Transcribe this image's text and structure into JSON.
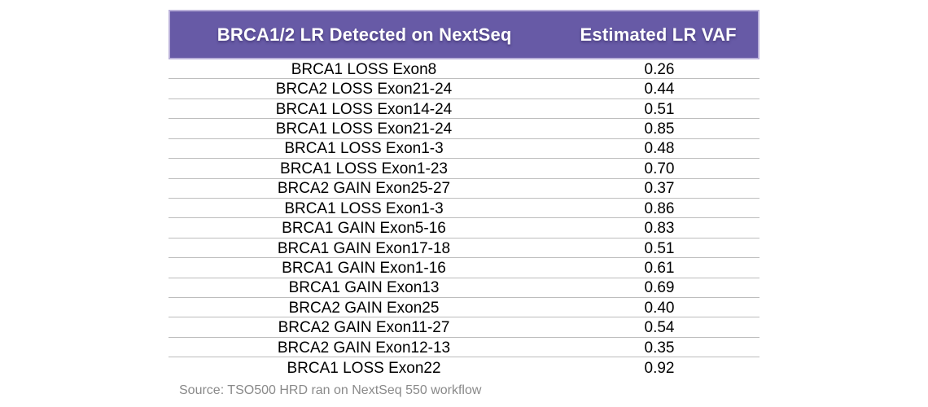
{
  "chart_data": {
    "type": "table",
    "columns": [
      "BRCA1/2 LR Detected on NextSeq",
      "Estimated LR VAF"
    ],
    "rows": [
      [
        "BRCA1 LOSS Exon8",
        "0.26"
      ],
      [
        "BRCA2 LOSS Exon21-24",
        "0.44"
      ],
      [
        "BRCA1 LOSS Exon14-24",
        "0.51"
      ],
      [
        "BRCA1 LOSS Exon21-24",
        "0.85"
      ],
      [
        "BRCA1 LOSS Exon1-3",
        "0.48"
      ],
      [
        "BRCA1 LOSS Exon1-23",
        "0.70"
      ],
      [
        "BRCA2 GAIN Exon25-27",
        "0.37"
      ],
      [
        "BRCA1 LOSS Exon1-3",
        "0.86"
      ],
      [
        "BRCA1 GAIN Exon5-16",
        "0.83"
      ],
      [
        "BRCA1 GAIN Exon17-18",
        "0.51"
      ],
      [
        "BRCA1 GAIN Exon1-16",
        "0.61"
      ],
      [
        "BRCA1 GAIN Exon13",
        "0.69"
      ],
      [
        "BRCA2 GAIN Exon25",
        "0.40"
      ],
      [
        "BRCA2 GAIN Exon11-27",
        "0.54"
      ],
      [
        "BRCA2 GAIN Exon12-13",
        "0.35"
      ],
      [
        "BRCA1 LOSS Exon22",
        "0.92"
      ]
    ],
    "legend_position": "none",
    "grid": "horizontal-row-dividers"
  },
  "source_note": "Source: TSO500 HRD ran on NextSeq 550 workflow",
  "colors": {
    "header_bg": "#675AA6",
    "header_text": "#FFFFFF",
    "row_text": "#000000",
    "row_divider": "#BDBDBD",
    "source_text": "#8A8A8A",
    "page_bg": "#FFFFFF"
  }
}
